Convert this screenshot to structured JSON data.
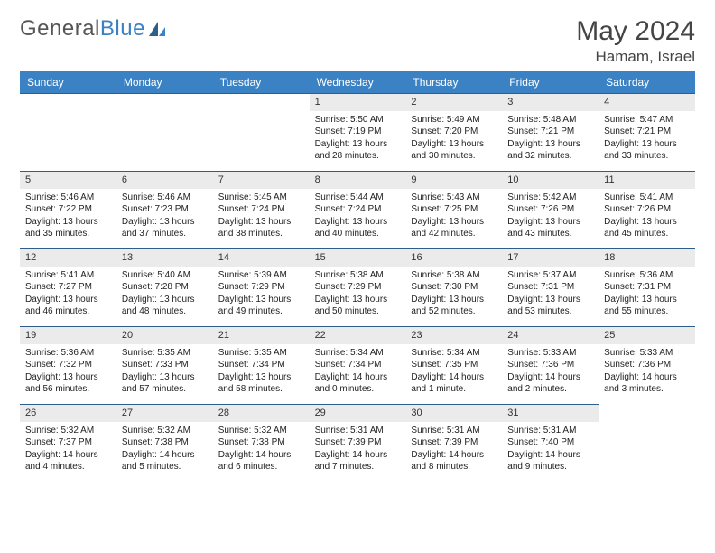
{
  "logo": {
    "part1": "General",
    "part2": "Blue"
  },
  "title": {
    "month": "May 2024",
    "location": "Hamam, Israel"
  },
  "dayheads": [
    "Sunday",
    "Monday",
    "Tuesday",
    "Wednesday",
    "Thursday",
    "Friday",
    "Saturday"
  ],
  "colors": {
    "headerBar": "#3b82c4",
    "cellBorder": "#2e5f8a",
    "daynumBg": "#ebebeb",
    "text": "#222222"
  },
  "blanksBefore": 3,
  "days": [
    {
      "n": "1",
      "sr": "Sunrise: 5:50 AM",
      "ss": "Sunset: 7:19 PM",
      "dl1": "Daylight: 13 hours",
      "dl2": "and 28 minutes."
    },
    {
      "n": "2",
      "sr": "Sunrise: 5:49 AM",
      "ss": "Sunset: 7:20 PM",
      "dl1": "Daylight: 13 hours",
      "dl2": "and 30 minutes."
    },
    {
      "n": "3",
      "sr": "Sunrise: 5:48 AM",
      "ss": "Sunset: 7:21 PM",
      "dl1": "Daylight: 13 hours",
      "dl2": "and 32 minutes."
    },
    {
      "n": "4",
      "sr": "Sunrise: 5:47 AM",
      "ss": "Sunset: 7:21 PM",
      "dl1": "Daylight: 13 hours",
      "dl2": "and 33 minutes."
    },
    {
      "n": "5",
      "sr": "Sunrise: 5:46 AM",
      "ss": "Sunset: 7:22 PM",
      "dl1": "Daylight: 13 hours",
      "dl2": "and 35 minutes."
    },
    {
      "n": "6",
      "sr": "Sunrise: 5:46 AM",
      "ss": "Sunset: 7:23 PM",
      "dl1": "Daylight: 13 hours",
      "dl2": "and 37 minutes."
    },
    {
      "n": "7",
      "sr": "Sunrise: 5:45 AM",
      "ss": "Sunset: 7:24 PM",
      "dl1": "Daylight: 13 hours",
      "dl2": "and 38 minutes."
    },
    {
      "n": "8",
      "sr": "Sunrise: 5:44 AM",
      "ss": "Sunset: 7:24 PM",
      "dl1": "Daylight: 13 hours",
      "dl2": "and 40 minutes."
    },
    {
      "n": "9",
      "sr": "Sunrise: 5:43 AM",
      "ss": "Sunset: 7:25 PM",
      "dl1": "Daylight: 13 hours",
      "dl2": "and 42 minutes."
    },
    {
      "n": "10",
      "sr": "Sunrise: 5:42 AM",
      "ss": "Sunset: 7:26 PM",
      "dl1": "Daylight: 13 hours",
      "dl2": "and 43 minutes."
    },
    {
      "n": "11",
      "sr": "Sunrise: 5:41 AM",
      "ss": "Sunset: 7:26 PM",
      "dl1": "Daylight: 13 hours",
      "dl2": "and 45 minutes."
    },
    {
      "n": "12",
      "sr": "Sunrise: 5:41 AM",
      "ss": "Sunset: 7:27 PM",
      "dl1": "Daylight: 13 hours",
      "dl2": "and 46 minutes."
    },
    {
      "n": "13",
      "sr": "Sunrise: 5:40 AM",
      "ss": "Sunset: 7:28 PM",
      "dl1": "Daylight: 13 hours",
      "dl2": "and 48 minutes."
    },
    {
      "n": "14",
      "sr": "Sunrise: 5:39 AM",
      "ss": "Sunset: 7:29 PM",
      "dl1": "Daylight: 13 hours",
      "dl2": "and 49 minutes."
    },
    {
      "n": "15",
      "sr": "Sunrise: 5:38 AM",
      "ss": "Sunset: 7:29 PM",
      "dl1": "Daylight: 13 hours",
      "dl2": "and 50 minutes."
    },
    {
      "n": "16",
      "sr": "Sunrise: 5:38 AM",
      "ss": "Sunset: 7:30 PM",
      "dl1": "Daylight: 13 hours",
      "dl2": "and 52 minutes."
    },
    {
      "n": "17",
      "sr": "Sunrise: 5:37 AM",
      "ss": "Sunset: 7:31 PM",
      "dl1": "Daylight: 13 hours",
      "dl2": "and 53 minutes."
    },
    {
      "n": "18",
      "sr": "Sunrise: 5:36 AM",
      "ss": "Sunset: 7:31 PM",
      "dl1": "Daylight: 13 hours",
      "dl2": "and 55 minutes."
    },
    {
      "n": "19",
      "sr": "Sunrise: 5:36 AM",
      "ss": "Sunset: 7:32 PM",
      "dl1": "Daylight: 13 hours",
      "dl2": "and 56 minutes."
    },
    {
      "n": "20",
      "sr": "Sunrise: 5:35 AM",
      "ss": "Sunset: 7:33 PM",
      "dl1": "Daylight: 13 hours",
      "dl2": "and 57 minutes."
    },
    {
      "n": "21",
      "sr": "Sunrise: 5:35 AM",
      "ss": "Sunset: 7:34 PM",
      "dl1": "Daylight: 13 hours",
      "dl2": "and 58 minutes."
    },
    {
      "n": "22",
      "sr": "Sunrise: 5:34 AM",
      "ss": "Sunset: 7:34 PM",
      "dl1": "Daylight: 14 hours",
      "dl2": "and 0 minutes."
    },
    {
      "n": "23",
      "sr": "Sunrise: 5:34 AM",
      "ss": "Sunset: 7:35 PM",
      "dl1": "Daylight: 14 hours",
      "dl2": "and 1 minute."
    },
    {
      "n": "24",
      "sr": "Sunrise: 5:33 AM",
      "ss": "Sunset: 7:36 PM",
      "dl1": "Daylight: 14 hours",
      "dl2": "and 2 minutes."
    },
    {
      "n": "25",
      "sr": "Sunrise: 5:33 AM",
      "ss": "Sunset: 7:36 PM",
      "dl1": "Daylight: 14 hours",
      "dl2": "and 3 minutes."
    },
    {
      "n": "26",
      "sr": "Sunrise: 5:32 AM",
      "ss": "Sunset: 7:37 PM",
      "dl1": "Daylight: 14 hours",
      "dl2": "and 4 minutes."
    },
    {
      "n": "27",
      "sr": "Sunrise: 5:32 AM",
      "ss": "Sunset: 7:38 PM",
      "dl1": "Daylight: 14 hours",
      "dl2": "and 5 minutes."
    },
    {
      "n": "28",
      "sr": "Sunrise: 5:32 AM",
      "ss": "Sunset: 7:38 PM",
      "dl1": "Daylight: 14 hours",
      "dl2": "and 6 minutes."
    },
    {
      "n": "29",
      "sr": "Sunrise: 5:31 AM",
      "ss": "Sunset: 7:39 PM",
      "dl1": "Daylight: 14 hours",
      "dl2": "and 7 minutes."
    },
    {
      "n": "30",
      "sr": "Sunrise: 5:31 AM",
      "ss": "Sunset: 7:39 PM",
      "dl1": "Daylight: 14 hours",
      "dl2": "and 8 minutes."
    },
    {
      "n": "31",
      "sr": "Sunrise: 5:31 AM",
      "ss": "Sunset: 7:40 PM",
      "dl1": "Daylight: 14 hours",
      "dl2": "and 9 minutes."
    }
  ]
}
